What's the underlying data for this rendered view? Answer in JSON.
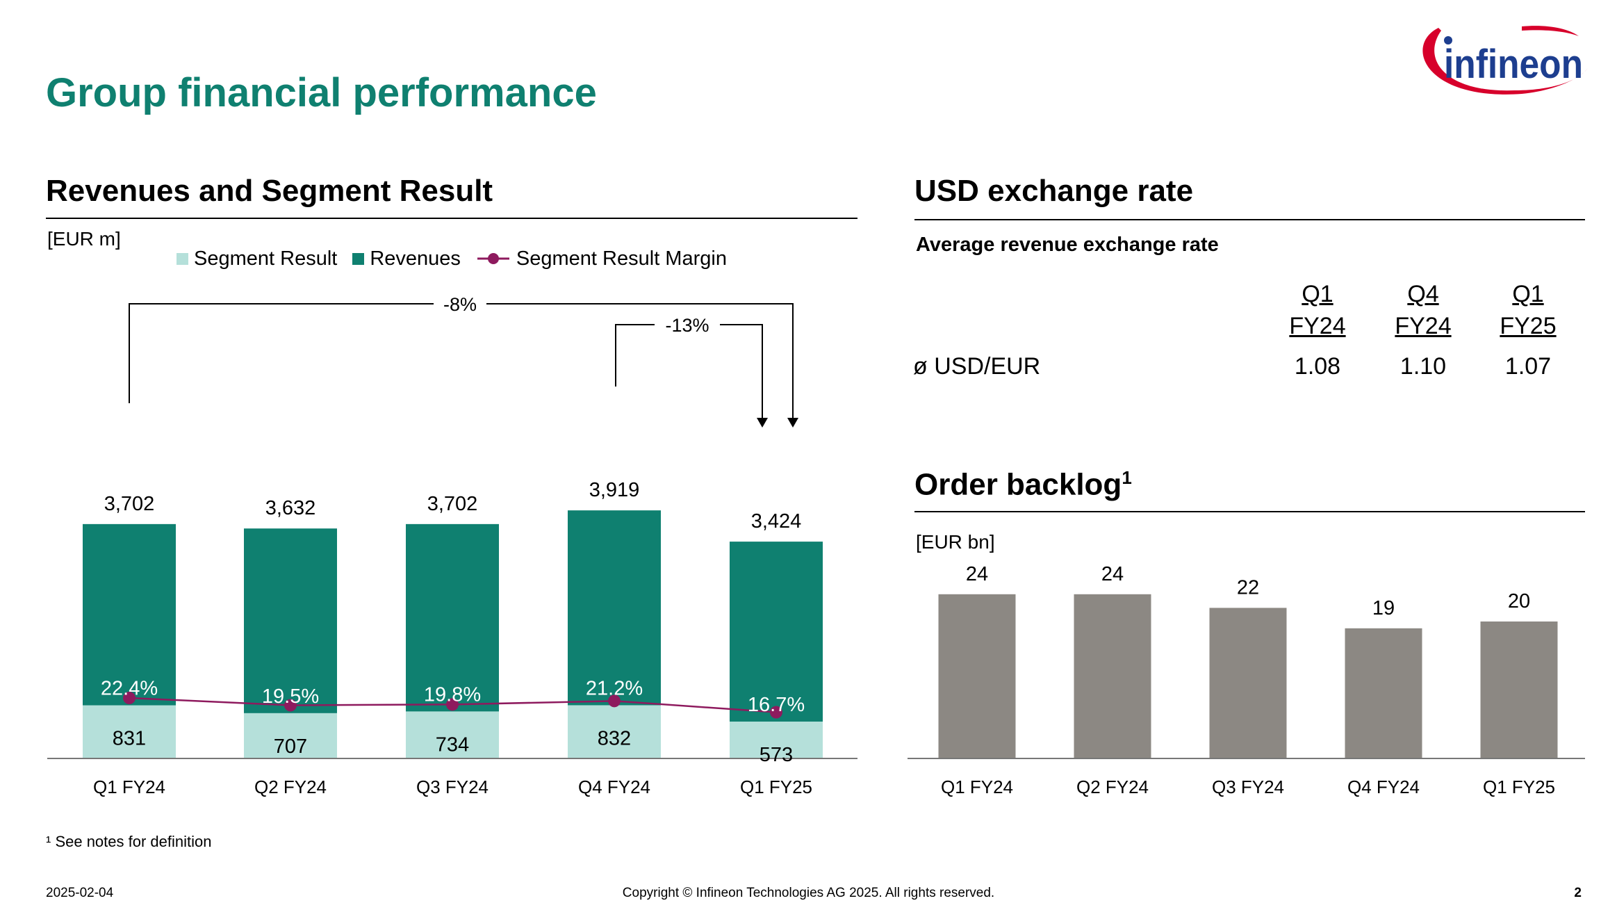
{
  "page": {
    "title": "Group financial performance",
    "footnote": "¹ See notes for definition",
    "date": "2025-02-04",
    "copyright": "Copyright © Infineon Technologies AG 2025. All rights reserved.",
    "page_number": "2",
    "logo_text": "infineon"
  },
  "colors": {
    "title": "#0f8070",
    "revenues": "#0f8070",
    "segment_result": "#b5e0da",
    "margin_line": "#8e1a5e",
    "backlog": "#8c8883"
  },
  "left_section": {
    "title": "Revenues and Segment Result",
    "unit": "[EUR m]",
    "legend": [
      "Segment Result",
      "Revenues",
      "Segment Result Margin"
    ]
  },
  "usd_section": {
    "title": "USD exchange rate",
    "subtitle": "Average revenue exchange rate",
    "row_label": "ø USD/EUR",
    "columns": [
      {
        "line1": "Q1",
        "line2": "FY24",
        "value": "1.08"
      },
      {
        "line1": "Q4",
        "line2": "FY24",
        "value": "1.10"
      },
      {
        "line1": "Q1",
        "line2": "FY25",
        "value": "1.07"
      }
    ]
  },
  "backlog_section": {
    "title": "Order backlog",
    "title_sup": "1",
    "unit": "[EUR bn]"
  },
  "chart_data": [
    {
      "type": "bar",
      "stacked": true,
      "title": "Revenues and Segment Result",
      "ylabel": "[EUR m]",
      "categories": [
        "Q1 FY24",
        "Q2 FY24",
        "Q3 FY24",
        "Q4 FY24",
        "Q1 FY25"
      ],
      "series": [
        {
          "name": "Revenues",
          "values": [
            3702,
            3632,
            3702,
            3919,
            3424
          ]
        },
        {
          "name": "Segment Result",
          "values": [
            831,
            707,
            734,
            832,
            573
          ]
        },
        {
          "name": "Segment Result Margin",
          "values": [
            22.4,
            19.5,
            19.8,
            21.2,
            16.7
          ],
          "unit": "%"
        }
      ],
      "revenue_labels": [
        "3,702",
        "3,632",
        "3,702",
        "3,919",
        "3,424"
      ],
      "segment_labels": [
        "831",
        "707",
        "734",
        "832",
        "573"
      ],
      "margin_labels": [
        "22.4%",
        "19.5%",
        "19.8%",
        "21.2%",
        "16.7%"
      ],
      "annotations": [
        {
          "text": "-8%",
          "from": "Q1 FY24",
          "to": "Q1 FY25"
        },
        {
          "text": "-13%",
          "from": "Q4 FY24",
          "to": "Q1 FY25"
        }
      ],
      "ylim": [
        0,
        5400
      ],
      "grid": false,
      "legend_position": "top"
    },
    {
      "type": "bar",
      "title": "Order backlog",
      "ylabel": "[EUR bn]",
      "categories": [
        "Q1 FY24",
        "Q2 FY24",
        "Q3 FY24",
        "Q4 FY24",
        "Q1 FY25"
      ],
      "values": [
        24,
        24,
        22,
        19,
        20
      ],
      "value_labels": [
        "24",
        "24",
        "22",
        "19",
        "20"
      ],
      "ylim": [
        0,
        28
      ],
      "grid": false
    }
  ]
}
